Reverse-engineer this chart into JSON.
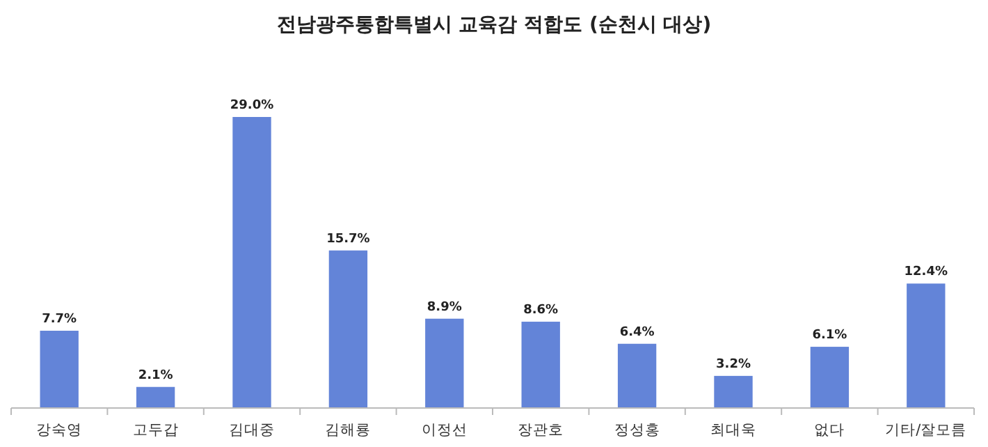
{
  "chart_data": {
    "type": "bar",
    "title": "전남광주통합특별시 교육감 적합도 (순천시 대상)",
    "categories": [
      "강숙영",
      "고두갑",
      "김대중",
      "김해룡",
      "이정선",
      "장관호",
      "정성홍",
      "최대욱",
      "없다",
      "기타/잘모름"
    ],
    "values": [
      7.7,
      2.1,
      29.0,
      15.7,
      8.9,
      8.6,
      6.4,
      3.2,
      6.1,
      12.4
    ],
    "value_labels": [
      "7.7%",
      "2.1%",
      "29.0%",
      "15.7%",
      "8.9%",
      "8.6%",
      "6.4%",
      "3.2%",
      "6.1%",
      "12.4%"
    ],
    "color": "#6384d8",
    "grid": false
  }
}
